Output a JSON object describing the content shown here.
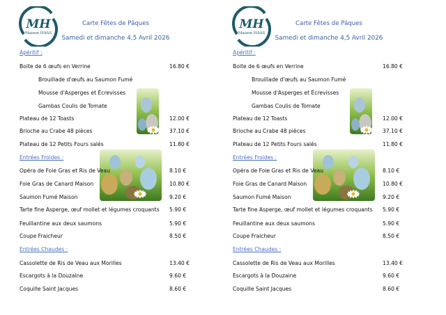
{
  "logo": {
    "initials": "MH",
    "name": "Maison HAAS",
    "color": "#1f5a6a"
  },
  "header": {
    "title": "Carte Fêtes de Pâques",
    "date": "Samedi et dimanche 4,5 Avril 2026"
  },
  "colors": {
    "heading": "#3c5ea8",
    "section": "#4a6fc0"
  },
  "sections": [
    {
      "title": "Apéritif :",
      "items": [
        {
          "name": "Boite de 6 œufs en Verrine",
          "price": "16.80 €"
        },
        {
          "name": "Brouillade d'œufs au Saumon Fumé",
          "sub": true
        },
        {
          "name": "Mousse d'Asperges et Écrevisses",
          "sub": true
        },
        {
          "name": "Gambas Coulis de Tomate",
          "sub": true
        },
        {
          "name": "Plateau de 12 Toasts",
          "price": "12.00 €"
        },
        {
          "name": "Brioche au Crabe 48 pièces",
          "price": "37.10 €"
        },
        {
          "name": "Plateau de 12 Petits Fours salés",
          "price": "11.80 €"
        }
      ]
    },
    {
      "title": "Entrées Froides :",
      "items": [
        {
          "name": "Opéra de Foie Gras et Ris de Veau",
          "price": "8.10 €"
        },
        {
          "name": "Foie Gras de Canard Maison",
          "price": "10.80 €"
        },
        {
          "name": "Saumon Fumé Maison",
          "price": "9.20 €"
        },
        {
          "name": "Tarte fine Asperge, œuf mollet et légumes croquants",
          "price": "5.90 €"
        },
        {
          "name": "Feuillantine aux deux saumons",
          "price": "5.90 €"
        },
        {
          "name": "Coupe Fraicheur",
          "price": "8.50 €"
        }
      ]
    },
    {
      "title": "Entrées Chaudes :",
      "items": [
        {
          "name": "Cassolette de Ris de Veau aux Morilles",
          "price": "13.40 €"
        },
        {
          "name": "Escargots à la Douzaine",
          "price": "9.60 €"
        },
        {
          "name": "Coquille Saint Jacques",
          "price": "8.60 €"
        }
      ]
    }
  ]
}
